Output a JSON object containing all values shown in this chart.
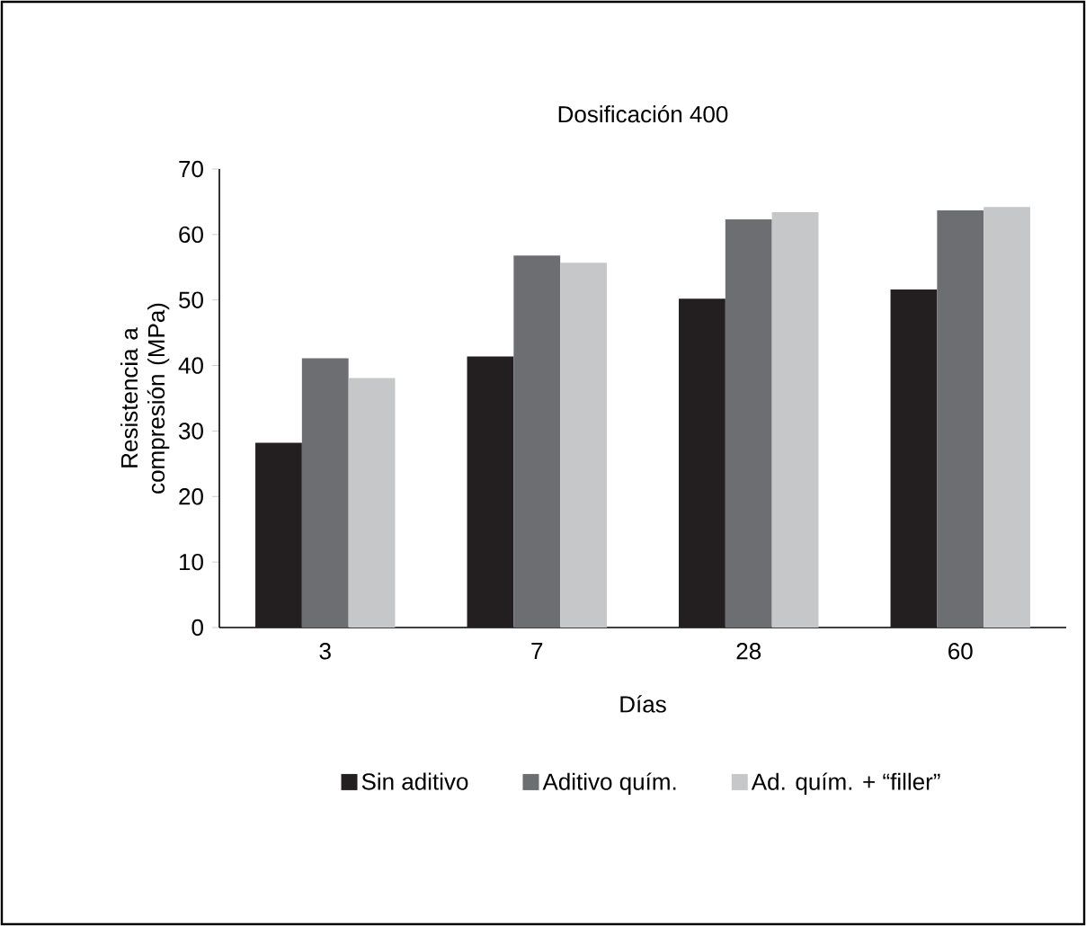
{
  "chart_data": {
    "type": "bar",
    "title": "Dosificación 400",
    "xlabel": "Días",
    "ylabel": "Resistencia a compresión (MPa)",
    "categories": [
      "3",
      "7",
      "28",
      "60"
    ],
    "series": [
      {
        "name": "Sin aditivo",
        "color": "#231f20",
        "values": [
          28.2,
          41.4,
          50.2,
          51.6
        ]
      },
      {
        "name": "Aditivo quím.",
        "color": "#6d6e71",
        "values": [
          41.1,
          56.8,
          62.3,
          63.7
        ]
      },
      {
        "name": "Ad. quím. + “filler”",
        "color": "#c6c7c8",
        "values": [
          38.1,
          55.7,
          63.4,
          64.2
        ]
      }
    ],
    "ylim": [
      0,
      70
    ],
    "yticks": [
      0,
      10,
      20,
      30,
      40,
      50,
      60,
      70
    ],
    "grid": false,
    "legend": "bottom"
  }
}
